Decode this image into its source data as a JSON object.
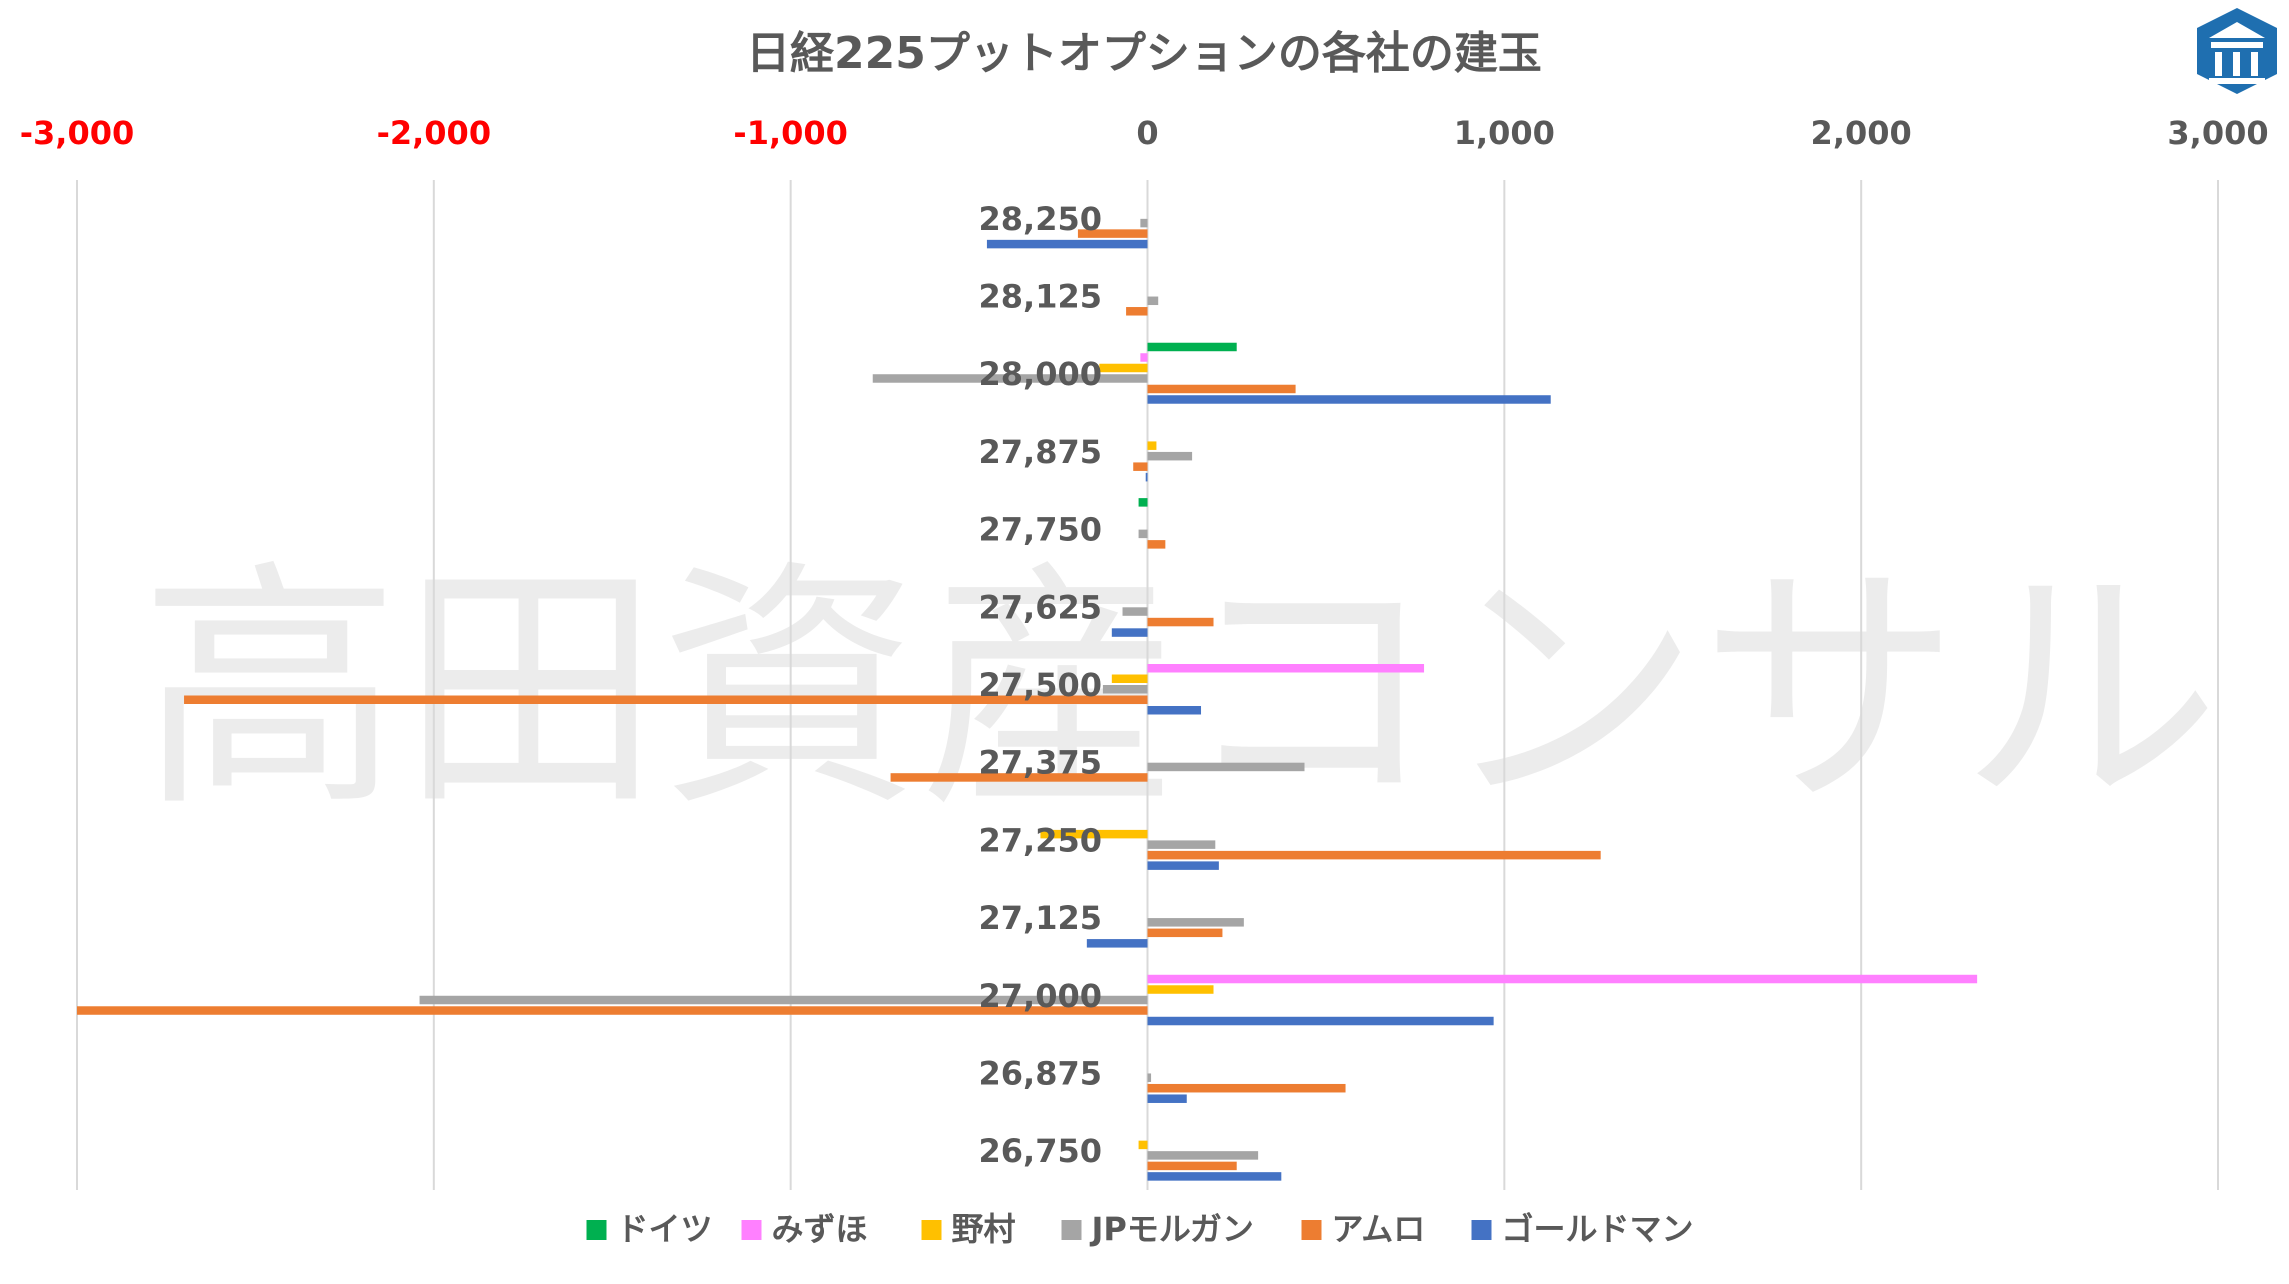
{
  "chart_data": {
    "type": "bar",
    "orientation": "horizontal",
    "title": "日経225プットオプションの各社の建玉",
    "watermark": "高田資産コンサル",
    "xlim": [
      -3000,
      3000
    ],
    "x_ticks": [
      -3000,
      -2000,
      -1000,
      0,
      1000,
      2000,
      3000
    ],
    "x_tick_labels": [
      "-3,000",
      "-2,000",
      "-1,000",
      "0",
      "1,000",
      "2,000",
      "3,000"
    ],
    "negative_tick_color": "#FF0000",
    "positive_tick_color": "#595959",
    "grid": true,
    "legend_position": "bottom",
    "categories": [
      "28,250",
      "28,125",
      "28,000",
      "27,875",
      "27,750",
      "27,625",
      "27,500",
      "27,375",
      "27,250",
      "27,125",
      "27,000",
      "26,875",
      "26,750"
    ],
    "series": [
      {
        "name": "ドイツ",
        "color": "#00B050",
        "values": [
          0,
          0,
          250,
          0,
          -25,
          0,
          0,
          0,
          0,
          0,
          0,
          0,
          0
        ]
      },
      {
        "name": "みずほ",
        "color": "#FF80FF",
        "values": [
          0,
          0,
          -20,
          0,
          0,
          0,
          775,
          0,
          0,
          0,
          2325,
          0,
          0
        ]
      },
      {
        "name": "野村",
        "color": "#FFC000",
        "values": [
          0,
          0,
          -135,
          25,
          0,
          0,
          -100,
          0,
          -300,
          0,
          185,
          0,
          -25
        ]
      },
      {
        "name": "JPモルガン",
        "color": "#A5A5A5",
        "values": [
          -20,
          30,
          -770,
          125,
          -25,
          -70,
          -125,
          440,
          190,
          270,
          -2040,
          10,
          310
        ]
      },
      {
        "name": "アムロ",
        "color": "#ED7D31",
        "values": [
          -195,
          -60,
          415,
          -40,
          50,
          185,
          -2700,
          -720,
          1270,
          210,
          -3000,
          555,
          250
        ]
      },
      {
        "name": "ゴールドマン",
        "color": "#4472C4",
        "values": [
          -450,
          0,
          1130,
          -5,
          0,
          -100,
          150,
          0,
          200,
          -170,
          970,
          110,
          375
        ]
      }
    ]
  },
  "logo": {
    "icon": "bank-building-icon",
    "color": "#1F6FB0"
  }
}
